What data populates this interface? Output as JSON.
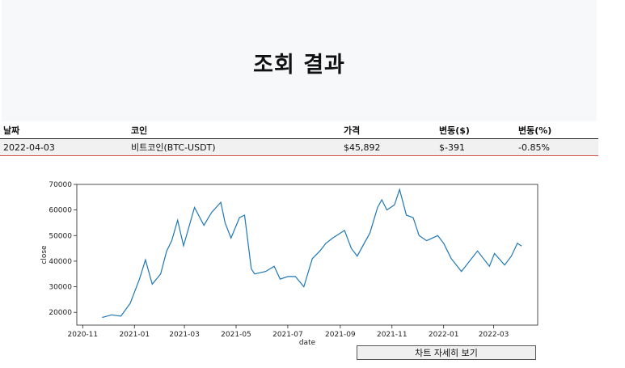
{
  "page_title": "조회 결과",
  "table": {
    "headers": [
      "날짜",
      "코인",
      "가격",
      "변동($)",
      "변동(%)"
    ],
    "rows": [
      [
        "2022-04-03",
        "비트코인(BTC-USDT)",
        "$45,892",
        "$-391",
        "-0.85%"
      ]
    ]
  },
  "detail_button_label": "차트 자세히 보기",
  "colors": {
    "line": "#1f77b4",
    "header_bg": "#f7f8fa",
    "row_border": "#d9534f"
  },
  "chart_data": {
    "type": "line",
    "title": "",
    "xlabel": "date",
    "ylabel": "close",
    "x_ticks": [
      "2020-11",
      "2021-01",
      "2021-03",
      "2021-05",
      "2021-07",
      "2021-09",
      "2021-11",
      "2022-01",
      "2022-03"
    ],
    "y_ticks": [
      20000,
      30000,
      40000,
      50000,
      60000,
      70000
    ],
    "xlim": [
      "2020-10-25",
      "2022-04-22"
    ],
    "ylim": [
      15000,
      70000
    ],
    "grid": false,
    "series": [
      {
        "x": [
          "2020-11-24",
          "2020-12-05",
          "2020-12-16",
          "2020-12-27",
          "2021-01-07",
          "2021-01-14",
          "2021-01-22",
          "2021-02-01",
          "2021-02-08",
          "2021-02-14",
          "2021-02-21",
          "2021-02-28",
          "2021-03-13",
          "2021-03-24",
          "2021-04-02",
          "2021-04-13",
          "2021-04-18",
          "2021-04-25",
          "2021-05-05",
          "2021-05-11",
          "2021-05-19",
          "2021-05-23",
          "2021-06-05",
          "2021-06-15",
          "2021-06-22",
          "2021-07-01",
          "2021-07-10",
          "2021-07-20",
          "2021-07-30",
          "2021-08-08",
          "2021-08-15",
          "2021-08-23",
          "2021-09-06",
          "2021-09-14",
          "2021-09-21",
          "2021-10-06",
          "2021-10-15",
          "2021-10-20",
          "2021-10-26",
          "2021-11-04",
          "2021-11-10",
          "2021-11-18",
          "2021-11-26",
          "2021-12-03",
          "2021-12-12",
          "2021-12-25",
          "2022-01-01",
          "2022-01-10",
          "2022-01-22",
          "2022-02-10",
          "2022-02-24",
          "2022-03-02",
          "2022-03-14",
          "2022-03-22",
          "2022-03-29",
          "2022-04-03"
        ],
        "values": [
          18000,
          19000,
          18500,
          23500,
          33000,
          40500,
          31000,
          35000,
          44000,
          48000,
          56000,
          46000,
          61000,
          54000,
          59000,
          63000,
          55000,
          49000,
          57000,
          58000,
          37000,
          35000,
          36000,
          38000,
          33000,
          34000,
          34000,
          30000,
          41000,
          44000,
          47000,
          49000,
          52000,
          45000,
          42000,
          51000,
          61000,
          64000,
          60000,
          62000,
          68000,
          58000,
          57000,
          50000,
          48000,
          50000,
          47000,
          41000,
          36000,
          44000,
          38000,
          43000,
          38500,
          42000,
          47000,
          45892
        ]
      }
    ]
  }
}
